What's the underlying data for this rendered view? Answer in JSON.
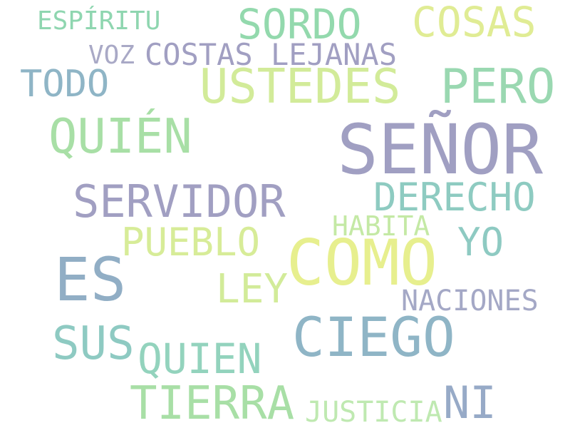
{
  "words": [
    {
      "text": "ESPÍRITU",
      "color": "#8fd6b0"
    },
    {
      "text": "SORDO",
      "color": "#93d9ad"
    },
    {
      "text": "COSAS",
      "color": "#e0ec94"
    },
    {
      "text": "VOZ",
      "color": "#a9a9c6"
    },
    {
      "text": "COSTAS LEJANAS",
      "color": "#a19fc2"
    },
    {
      "text": "TODO",
      "color": "#8fb5c6"
    },
    {
      "text": "USTEDES",
      "color": "#d2eb99"
    },
    {
      "text": "PERO",
      "color": "#9ad8b1"
    },
    {
      "text": "QUIÉN",
      "color": "#a8dfa6"
    },
    {
      "text": "SEÑOR",
      "color": "#a09fc2"
    },
    {
      "text": "SERVIDOR",
      "color": "#a19fc2"
    },
    {
      "text": "DERECHO",
      "color": "#8ecbc1"
    },
    {
      "text": "HABITA",
      "color": "#c4e9a5"
    },
    {
      "text": "PUEBLO",
      "color": "#d7ec98"
    },
    {
      "text": "YO",
      "color": "#8ecac2"
    },
    {
      "text": "COMO",
      "color": "#e7ef8e"
    },
    {
      "text": "ES",
      "color": "#91aec5"
    },
    {
      "text": "LEY",
      "color": "#d2eb99"
    },
    {
      "text": "NACIONES",
      "color": "#a4a8c6"
    },
    {
      "text": "SUS",
      "color": "#8ecac2"
    },
    {
      "text": "CIEGO",
      "color": "#8fb5c6"
    },
    {
      "text": "QUIEN",
      "color": "#93d3bd"
    },
    {
      "text": "TIERRA",
      "color": "#a8dfa6"
    },
    {
      "text": "JUSTICIA",
      "color": "#bfe9b1"
    },
    {
      "text": "NI",
      "color": "#97aac7"
    }
  ]
}
